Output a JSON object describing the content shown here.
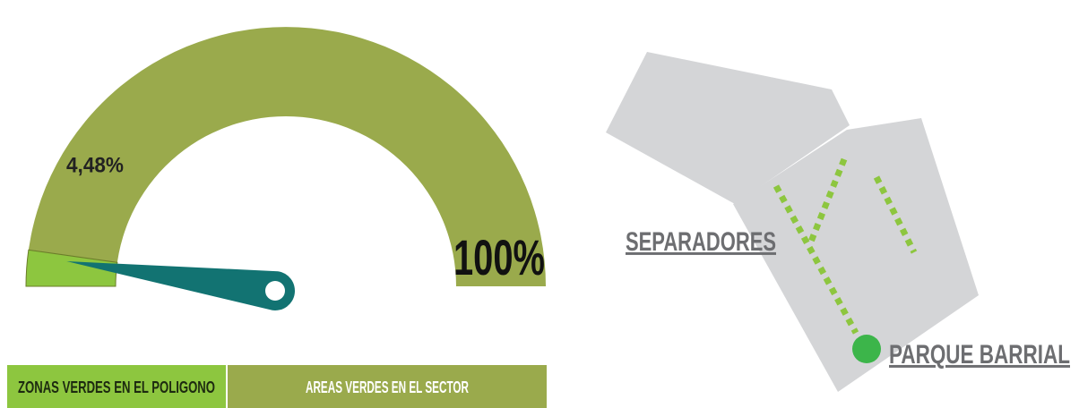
{
  "chart_data": {
    "type": "gauge",
    "series": [
      {
        "name": "ZONAS VERDES EN EL POLIGONO",
        "color": "#8dc63f",
        "values": [
          4.48
        ],
        "value_labels": [
          "4,48%"
        ]
      },
      {
        "name": "AREAS VERDES EN EL SECTOR",
        "color": "#9aaa4c",
        "values": [
          100
        ],
        "value_labels": [
          "100%"
        ]
      }
    ],
    "ylim": [
      0,
      100
    ]
  },
  "map": {
    "labels": [
      "SEPARADORES",
      "PARQUE BARRIAL"
    ]
  }
}
